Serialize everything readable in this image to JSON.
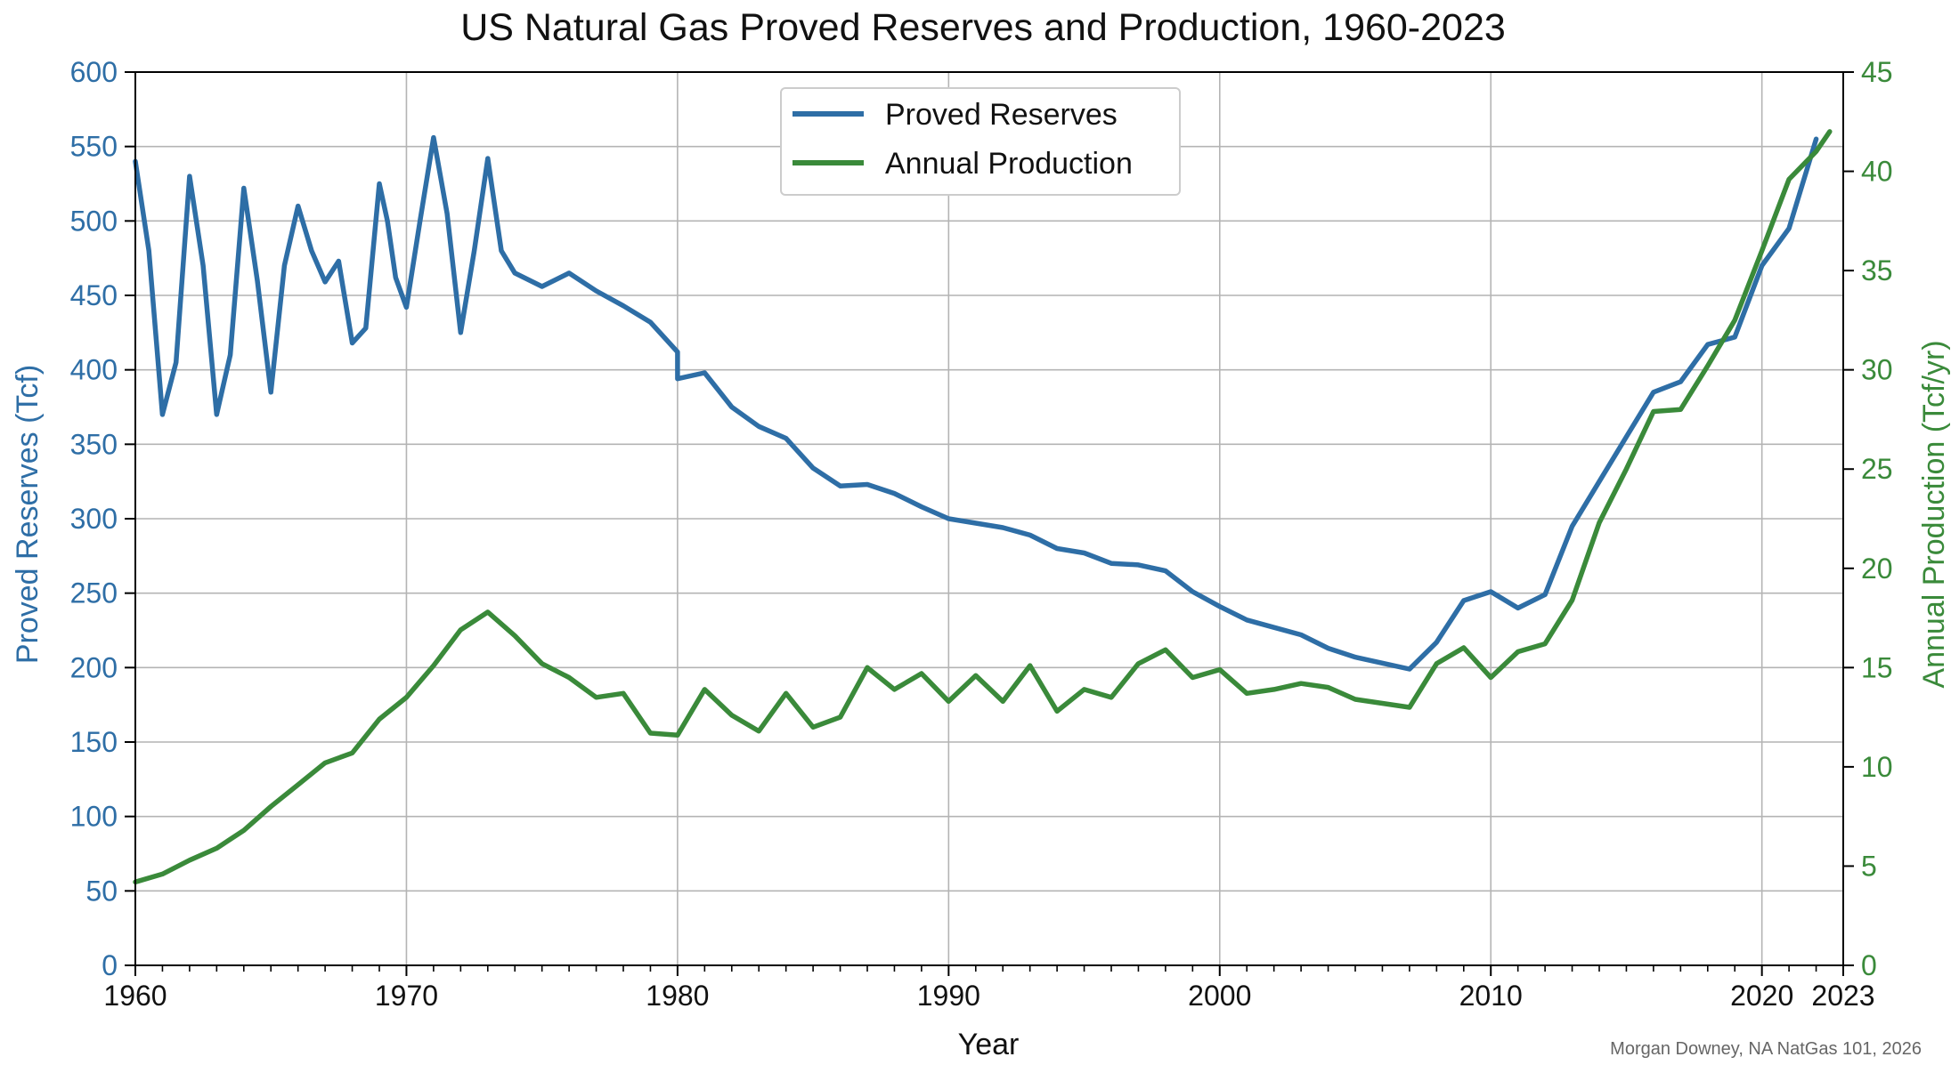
{
  "chart_data": {
    "type": "line",
    "title": "US Natural Gas Proved Reserves and Production, 1960-2023",
    "xlabel": "Year",
    "ylabel_left": "Proved Reserves (Tcf)",
    "ylabel_right": "Annual Production (Tcf/yr)",
    "xlim": [
      1960,
      2023
    ],
    "ylim_left": [
      0,
      600
    ],
    "ylim_right": [
      0,
      45
    ],
    "x_ticks": [
      1960,
      1970,
      1980,
      1990,
      2000,
      2010,
      2020,
      2023
    ],
    "x_tick_labels": [
      "1960",
      "1970",
      "1980",
      "1990",
      "2000",
      "2010",
      "2020",
      "2023"
    ],
    "y_left_ticks": [
      0,
      50,
      100,
      150,
      200,
      250,
      300,
      350,
      400,
      450,
      500,
      550,
      600
    ],
    "y_left_tick_labels": [
      "0",
      "50",
      "100",
      "150",
      "200",
      "250",
      "300",
      "350",
      "400",
      "450",
      "500",
      "550",
      "600"
    ],
    "y_right_ticks": [
      0,
      5,
      10,
      15,
      20,
      25,
      30,
      35,
      40,
      45
    ],
    "y_right_tick_labels": [
      "0",
      "5",
      "10",
      "15",
      "20",
      "25",
      "30",
      "35",
      "40",
      "45"
    ],
    "grid": true,
    "legend_position": "top-center",
    "colors": {
      "reserves": "#2e6ea6",
      "production": "#3a8a3a",
      "left_axis_text": "#2e6ea6",
      "right_axis_text": "#3a8a3a"
    },
    "series": [
      {
        "name": "Proved Reserves",
        "axis": "left",
        "points": [
          [
            1960,
            540
          ],
          [
            1960.5,
            480
          ],
          [
            1961,
            370
          ],
          [
            1961.5,
            405
          ],
          [
            1962,
            530
          ],
          [
            1962.5,
            470
          ],
          [
            1963,
            370
          ],
          [
            1963.5,
            410
          ],
          [
            1964,
            522
          ],
          [
            1964.5,
            460
          ],
          [
            1965,
            385
          ],
          [
            1965.5,
            470
          ],
          [
            1966,
            510
          ],
          [
            1966.5,
            480
          ],
          [
            1967,
            459
          ],
          [
            1967.5,
            473
          ],
          [
            1968,
            418
          ],
          [
            1968.5,
            428
          ],
          [
            1969,
            525
          ],
          [
            1969.3,
            500
          ],
          [
            1969.6,
            462
          ],
          [
            1970,
            442
          ],
          [
            1970.5,
            500
          ],
          [
            1971,
            556
          ],
          [
            1971.5,
            505
          ],
          [
            1972,
            425
          ],
          [
            1972.5,
            480
          ],
          [
            1973,
            542
          ],
          [
            1973.5,
            480
          ],
          [
            1974,
            465
          ],
          [
            1975,
            456
          ],
          [
            1976,
            465
          ],
          [
            1977,
            453
          ],
          [
            1978,
            443
          ],
          [
            1979,
            432
          ],
          [
            1980,
            412
          ],
          [
            1980,
            394
          ],
          [
            1981,
            398
          ],
          [
            1982,
            375
          ],
          [
            1983,
            362
          ],
          [
            1984,
            354
          ],
          [
            1985,
            334
          ],
          [
            1986,
            322
          ],
          [
            1987,
            323
          ],
          [
            1988,
            317
          ],
          [
            1989,
            308
          ],
          [
            1990,
            300
          ],
          [
            1991,
            297
          ],
          [
            1992,
            294
          ],
          [
            1993,
            289
          ],
          [
            1994,
            280
          ],
          [
            1995,
            277
          ],
          [
            1996,
            270
          ],
          [
            1997,
            269
          ],
          [
            1998,
            265
          ],
          [
            1999,
            251
          ],
          [
            2000,
            241
          ],
          [
            2001,
            232
          ],
          [
            2002,
            227
          ],
          [
            2003,
            222
          ],
          [
            2004,
            213
          ],
          [
            2005,
            207
          ],
          [
            2006,
            203
          ],
          [
            2007,
            199
          ],
          [
            2008,
            217
          ],
          [
            2009,
            245
          ],
          [
            2010,
            251
          ],
          [
            2011,
            240
          ],
          [
            2012,
            249
          ],
          [
            2013,
            295
          ],
          [
            2014,
            325
          ],
          [
            2015,
            355
          ],
          [
            2016,
            385
          ],
          [
            2017,
            392
          ],
          [
            2018,
            417
          ],
          [
            2019,
            422
          ],
          [
            2020,
            470
          ],
          [
            2021,
            495
          ],
          [
            2022,
            555
          ]
        ]
      },
      {
        "name": "Annual Production",
        "axis": "right",
        "points": [
          [
            1960,
            4.2
          ],
          [
            1961,
            4.6
          ],
          [
            1962,
            5.3
          ],
          [
            1963,
            5.9
          ],
          [
            1964,
            6.8
          ],
          [
            1965,
            8.0
          ],
          [
            1966,
            9.1
          ],
          [
            1967,
            10.2
          ],
          [
            1968,
            10.7
          ],
          [
            1969,
            12.4
          ],
          [
            1970,
            13.5
          ],
          [
            1971,
            15.1
          ],
          [
            1972,
            16.9
          ],
          [
            1973,
            17.8
          ],
          [
            1974,
            16.6
          ],
          [
            1975,
            15.2
          ],
          [
            1976,
            14.5
          ],
          [
            1977,
            13.5
          ],
          [
            1978,
            13.7
          ],
          [
            1979,
            11.7
          ],
          [
            1980,
            11.6
          ],
          [
            1981,
            13.9
          ],
          [
            1982,
            12.6
          ],
          [
            1983,
            11.8
          ],
          [
            1984,
            13.7
          ],
          [
            1985,
            12.0
          ],
          [
            1986,
            12.5
          ],
          [
            1987,
            15.0
          ],
          [
            1988,
            13.9
          ],
          [
            1989,
            14.7
          ],
          [
            1990,
            13.3
          ],
          [
            1991,
            14.6
          ],
          [
            1992,
            13.3
          ],
          [
            1993,
            15.1
          ],
          [
            1994,
            12.8
          ],
          [
            1995,
            13.9
          ],
          [
            1996,
            13.5
          ],
          [
            1997,
            15.2
          ],
          [
            1998,
            15.9
          ],
          [
            1999,
            14.5
          ],
          [
            2000,
            14.9
          ],
          [
            2001,
            13.7
          ],
          [
            2002,
            13.9
          ],
          [
            2003,
            14.2
          ],
          [
            2004,
            14.0
          ],
          [
            2005,
            13.4
          ],
          [
            2006,
            13.2
          ],
          [
            2007,
            13.0
          ],
          [
            2008,
            15.2
          ],
          [
            2009,
            16.0
          ],
          [
            2010,
            14.5
          ],
          [
            2011,
            15.8
          ],
          [
            2012,
            16.2
          ],
          [
            2013,
            18.4
          ],
          [
            2014,
            22.3
          ],
          [
            2015,
            25.0
          ],
          [
            2016,
            27.9
          ],
          [
            2017,
            28.0
          ],
          [
            2018,
            30.2
          ],
          [
            2019,
            32.5
          ],
          [
            2020,
            36.0
          ],
          [
            2021,
            39.6
          ],
          [
            2022,
            41.0
          ],
          [
            2022.5,
            42.0
          ]
        ]
      }
    ],
    "annotation": "Morgan Downey, NA NatGas 101, 2026"
  }
}
